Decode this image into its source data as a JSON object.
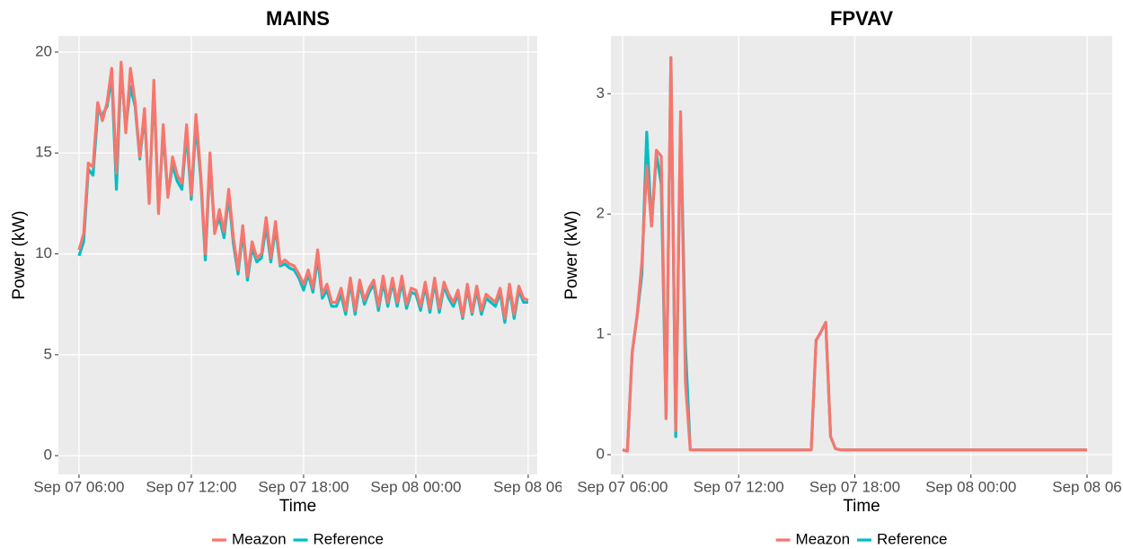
{
  "chart_data": [
    {
      "type": "line",
      "title": "MAINS",
      "x_label": "Time",
      "y_label": "Power (kW)",
      "x": [
        "Sep 07 06:00",
        "Sep 07 06:15",
        "Sep 07 06:30",
        "Sep 07 06:45",
        "Sep 07 07:00",
        "Sep 07 07:15",
        "Sep 07 07:30",
        "Sep 07 07:45",
        "Sep 07 08:00",
        "Sep 07 08:15",
        "Sep 07 08:30",
        "Sep 07 08:45",
        "Sep 07 09:00",
        "Sep 07 09:15",
        "Sep 07 09:30",
        "Sep 07 09:45",
        "Sep 07 10:00",
        "Sep 07 10:15",
        "Sep 07 10:30",
        "Sep 07 10:45",
        "Sep 07 11:00",
        "Sep 07 11:15",
        "Sep 07 11:30",
        "Sep 07 11:45",
        "Sep 07 12:00",
        "Sep 07 12:15",
        "Sep 07 12:30",
        "Sep 07 12:45",
        "Sep 07 13:00",
        "Sep 07 13:15",
        "Sep 07 13:30",
        "Sep 07 13:45",
        "Sep 07 14:00",
        "Sep 07 14:15",
        "Sep 07 14:30",
        "Sep 07 14:45",
        "Sep 07 15:00",
        "Sep 07 15:15",
        "Sep 07 15:30",
        "Sep 07 15:45",
        "Sep 07 16:00",
        "Sep 07 16:15",
        "Sep 07 16:30",
        "Sep 07 16:45",
        "Sep 07 17:00",
        "Sep 07 17:15",
        "Sep 07 17:30",
        "Sep 07 17:45",
        "Sep 07 18:00",
        "Sep 07 18:15",
        "Sep 07 18:30",
        "Sep 07 18:45",
        "Sep 07 19:00",
        "Sep 07 19:15",
        "Sep 07 19:30",
        "Sep 07 19:45",
        "Sep 07 20:00",
        "Sep 07 20:15",
        "Sep 07 20:30",
        "Sep 07 20:45",
        "Sep 07 21:00",
        "Sep 07 21:15",
        "Sep 07 21:30",
        "Sep 07 21:45",
        "Sep 07 22:00",
        "Sep 07 22:15",
        "Sep 07 22:30",
        "Sep 07 22:45",
        "Sep 07 23:00",
        "Sep 07 23:15",
        "Sep 07 23:30",
        "Sep 07 23:45",
        "Sep 08 00:00",
        "Sep 08 00:15",
        "Sep 08 00:30",
        "Sep 08 00:45",
        "Sep 08 01:00",
        "Sep 08 01:15",
        "Sep 08 01:30",
        "Sep 08 01:45",
        "Sep 08 02:00",
        "Sep 08 02:15",
        "Sep 08 02:30",
        "Sep 08 02:45",
        "Sep 08 03:00",
        "Sep 08 03:15",
        "Sep 08 03:30",
        "Sep 08 03:45",
        "Sep 08 04:00",
        "Sep 08 04:15",
        "Sep 08 04:30",
        "Sep 08 04:45",
        "Sep 08 05:00",
        "Sep 08 05:15",
        "Sep 08 05:30",
        "Sep 08 05:45",
        "Sep 08 06:00"
      ],
      "series": [
        {
          "name": "Meazon",
          "color": "#f8766d",
          "values": [
            10.2,
            11,
            14.5,
            14.3,
            17.5,
            16.6,
            17.5,
            19.2,
            14,
            19.5,
            16,
            19.2,
            17.5,
            14.8,
            17.2,
            12.5,
            18.6,
            12,
            16.4,
            12.8,
            14.8,
            13.9,
            13.5,
            16.4,
            12.9,
            16.9,
            14,
            10,
            15,
            11,
            12.2,
            11.1,
            13.2,
            10.8,
            9.2,
            11.4,
            8.9,
            10.6,
            9.8,
            10,
            11.8,
            9.8,
            11.6,
            9.5,
            9.7,
            9.5,
            9.4,
            9,
            8.5,
            9.2,
            8.3,
            10.2,
            8,
            8.5,
            7.6,
            7.6,
            8.3,
            7.2,
            8.8,
            7.2,
            8.7,
            7.7,
            8.3,
            8.7,
            7.4,
            8.9,
            7.6,
            8.8,
            7.6,
            8.9,
            7.5,
            8.3,
            8.2,
            7.4,
            8.6,
            7.3,
            8.8,
            7.3,
            8.6,
            8,
            7.6,
            8.2,
            6.9,
            8.5,
            7.1,
            8.4,
            7.2,
            8,
            7.8,
            7.6,
            8.3,
            6.8,
            8.5,
            7,
            8.4,
            7.8,
            7.7
          ]
        },
        {
          "name": "Reference",
          "color": "#00bfc4",
          "values": [
            9.9,
            10.6,
            14.2,
            13.9,
            17,
            16.9,
            17.3,
            18.8,
            13.2,
            19.2,
            16.2,
            18.3,
            17.3,
            14.7,
            16.9,
            12.7,
            18.2,
            12.2,
            16,
            12.9,
            14.4,
            13.6,
            13.2,
            16,
            12.7,
            16.4,
            13.8,
            9.7,
            14.6,
            11.1,
            11.8,
            10.8,
            12.9,
            10.5,
            9,
            11.1,
            8.7,
            10.3,
            9.6,
            9.8,
            11.4,
            9.6,
            11.3,
            9.4,
            9.5,
            9.3,
            9.2,
            8.8,
            8.2,
            9,
            8.1,
            9.8,
            7.8,
            8.2,
            7.4,
            7.4,
            8,
            7,
            8.6,
            7,
            8.5,
            7.5,
            8.1,
            8.5,
            7.2,
            8.6,
            7.4,
            8.6,
            7.4,
            8.6,
            7.3,
            8.1,
            8,
            7.2,
            8.4,
            7.1,
            8.6,
            7.1,
            8.4,
            7.8,
            7.4,
            8,
            6.8,
            8.3,
            7,
            8.2,
            7,
            7.8,
            7.6,
            7.4,
            8.1,
            6.6,
            8.3,
            6.8,
            8.2,
            7.6,
            7.6
          ]
        }
      ],
      "xlim": [
        "Sep 07 04:54",
        "Sep 08 06:29"
      ],
      "xticks": [
        {
          "value": "Sep 07 06:00",
          "label": "Sep 07 06:00"
        },
        {
          "value": "Sep 07 12:00",
          "label": "Sep 07 12:00"
        },
        {
          "value": "Sep 07 18:00",
          "label": "Sep 07 18:00"
        },
        {
          "value": "Sep 08 00:00",
          "label": "Sep 08 00:00"
        },
        {
          "value": "Sep 08 06:00",
          "label": "Sep 08 06"
        }
      ],
      "ylim": [
        -0.93,
        20.8
      ],
      "yticks": [
        0,
        5,
        10,
        15,
        20
      ],
      "grid": true,
      "legend": "bottom"
    },
    {
      "type": "line",
      "title": "FPVAV",
      "x_label": "Time",
      "y_label": "Power (kW)",
      "x": [
        "Sep 07 06:00",
        "Sep 07 06:15",
        "Sep 07 06:30",
        "Sep 07 06:45",
        "Sep 07 07:00",
        "Sep 07 07:15",
        "Sep 07 07:30",
        "Sep 07 07:45",
        "Sep 07 08:00",
        "Sep 07 08:15",
        "Sep 07 08:30",
        "Sep 07 08:45",
        "Sep 07 09:00",
        "Sep 07 09:15",
        "Sep 07 09:30",
        "Sep 07 09:45",
        "Sep 07 10:00",
        "Sep 07 10:15",
        "Sep 07 10:30",
        "Sep 07 10:45",
        "Sep 07 11:00",
        "Sep 07 11:15",
        "Sep 07 11:30",
        "Sep 07 11:45",
        "Sep 07 12:00",
        "Sep 07 12:15",
        "Sep 07 12:30",
        "Sep 07 12:45",
        "Sep 07 13:00",
        "Sep 07 13:15",
        "Sep 07 13:30",
        "Sep 07 13:45",
        "Sep 07 14:00",
        "Sep 07 14:15",
        "Sep 07 14:30",
        "Sep 07 14:45",
        "Sep 07 15:00",
        "Sep 07 15:15",
        "Sep 07 15:30",
        "Sep 07 15:45",
        "Sep 07 16:00",
        "Sep 07 16:15",
        "Sep 07 16:30",
        "Sep 07 16:45",
        "Sep 07 17:00",
        "Sep 07 17:15",
        "Sep 07 17:30",
        "Sep 07 17:45",
        "Sep 07 18:00",
        "Sep 07 18:15",
        "Sep 07 18:30",
        "Sep 07 18:45",
        "Sep 07 19:00",
        "Sep 07 19:15",
        "Sep 07 19:30",
        "Sep 07 19:45",
        "Sep 07 20:00",
        "Sep 07 20:15",
        "Sep 07 20:30",
        "Sep 07 20:45",
        "Sep 07 21:00",
        "Sep 07 21:15",
        "Sep 07 21:30",
        "Sep 07 21:45",
        "Sep 07 22:00",
        "Sep 07 22:15",
        "Sep 07 22:30",
        "Sep 07 22:45",
        "Sep 07 23:00",
        "Sep 07 23:15",
        "Sep 07 23:30",
        "Sep 07 23:45",
        "Sep 08 00:00",
        "Sep 08 00:15",
        "Sep 08 00:30",
        "Sep 08 00:45",
        "Sep 08 01:00",
        "Sep 08 01:15",
        "Sep 08 01:30",
        "Sep 08 01:45",
        "Sep 08 02:00",
        "Sep 08 02:15",
        "Sep 08 02:30",
        "Sep 08 02:45",
        "Sep 08 03:00",
        "Sep 08 03:15",
        "Sep 08 03:30",
        "Sep 08 03:45",
        "Sep 08 04:00",
        "Sep 08 04:15",
        "Sep 08 04:30",
        "Sep 08 04:45",
        "Sep 08 05:00",
        "Sep 08 05:15",
        "Sep 08 05:30",
        "Sep 08 05:45",
        "Sep 08 06:00"
      ],
      "series": [
        {
          "name": "Meazon",
          "color": "#f8766d",
          "values": [
            0.04,
            0.03,
            0.85,
            1.15,
            1.6,
            2.4,
            1.9,
            2.53,
            2.48,
            0.3,
            3.3,
            0.2,
            2.85,
            0.6,
            0.04,
            0.04,
            0.04,
            0.04,
            0.04,
            0.04,
            0.04,
            0.04,
            0.04,
            0.04,
            0.04,
            0.04,
            0.04,
            0.04,
            0.04,
            0.04,
            0.04,
            0.04,
            0.04,
            0.04,
            0.04,
            0.04,
            0.04,
            0.04,
            0.04,
            0.04,
            0.95,
            1.02,
            1.1,
            0.15,
            0.05,
            0.04,
            0.04,
            0.04,
            0.04,
            0.04,
            0.04,
            0.04,
            0.04,
            0.04,
            0.04,
            0.04,
            0.04,
            0.04,
            0.04,
            0.04,
            0.04,
            0.04,
            0.04,
            0.04,
            0.04,
            0.04,
            0.04,
            0.04,
            0.04,
            0.04,
            0.04,
            0.04,
            0.04,
            0.04,
            0.04,
            0.04,
            0.04,
            0.04,
            0.04,
            0.04,
            0.04,
            0.04,
            0.04,
            0.04,
            0.04,
            0.04,
            0.04,
            0.04,
            0.04,
            0.04,
            0.04,
            0.04,
            0.04,
            0.04,
            0.04,
            0.04,
            0.04
          ]
        },
        {
          "name": "Reference",
          "color": "#00bfc4",
          "values": [
            0.04,
            0.03,
            0.85,
            1.15,
            1.5,
            2.68,
            1.9,
            2.5,
            2.25,
            0.3,
            3.3,
            0.15,
            2.8,
            0.9,
            0.04,
            0.04,
            0.04,
            0.04,
            0.04,
            0.04,
            0.04,
            0.04,
            0.04,
            0.04,
            0.04,
            0.04,
            0.04,
            0.04,
            0.04,
            0.04,
            0.04,
            0.04,
            0.04,
            0.04,
            0.04,
            0.04,
            0.04,
            0.04,
            0.04,
            0.04,
            0.95,
            1.02,
            1.1,
            0.15,
            0.05,
            0.04,
            0.04,
            0.04,
            0.04,
            0.04,
            0.04,
            0.04,
            0.04,
            0.04,
            0.04,
            0.04,
            0.04,
            0.04,
            0.04,
            0.04,
            0.04,
            0.04,
            0.04,
            0.04,
            0.04,
            0.04,
            0.04,
            0.04,
            0.04,
            0.04,
            0.04,
            0.04,
            0.04,
            0.04,
            0.04,
            0.04,
            0.04,
            0.04,
            0.04,
            0.04,
            0.04,
            0.04,
            0.04,
            0.04,
            0.04,
            0.04,
            0.04,
            0.04,
            0.04,
            0.04,
            0.04,
            0.04,
            0.04,
            0.04,
            0.04,
            0.04,
            0.04
          ]
        }
      ],
      "xlim": [
        "Sep 07 05:24",
        "Sep 08 07:18"
      ],
      "xticks": [
        {
          "value": "Sep 07 06:00",
          "label": "Sep 07 06:00"
        },
        {
          "value": "Sep 07 12:00",
          "label": "Sep 07 12:00"
        },
        {
          "value": "Sep 07 18:00",
          "label": "Sep 07 18:00"
        },
        {
          "value": "Sep 08 00:00",
          "label": "Sep 08 00:00"
        },
        {
          "value": "Sep 08 06:00",
          "label": "Sep 08 06"
        }
      ],
      "ylim": [
        -0.164,
        3.48
      ],
      "yticks": [
        0,
        1,
        2,
        3
      ],
      "grid": true,
      "legend": "bottom"
    }
  ]
}
